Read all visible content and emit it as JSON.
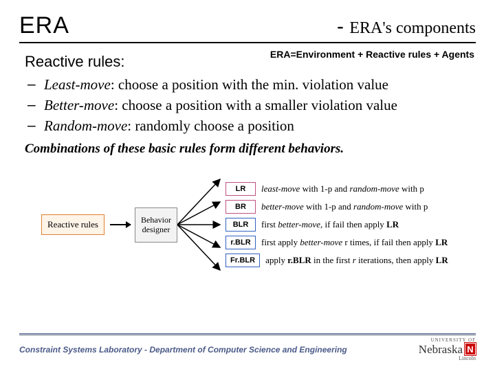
{
  "header": {
    "left": "ERA",
    "right_dash": "- ",
    "right_main": "ERA's components"
  },
  "acronym": "ERA=Environment + Reactive rules + Agents",
  "section_title": "Reactive rules:",
  "bullets": [
    {
      "term": "Least-move",
      "rest": ": choose a position with the min. violation value"
    },
    {
      "term": "Better-move",
      "rest": ": choose a position with a smaller violation value"
    },
    {
      "term": "Random-move",
      "rest": ": randomly choose a position"
    }
  ],
  "combo_line": "Combinations of these basic rules form different behaviors.",
  "diagram": {
    "reactive_rules_box": {
      "label": "Reactive rules",
      "border": "#e08030",
      "bg": "#fff4e8"
    },
    "behavior_designer": "Behavior designer",
    "rules": [
      {
        "code": "LR",
        "border": "#c05080",
        "desc_parts": [
          {
            "t": "least-move",
            "it": true
          },
          {
            "t": " with 1-p and "
          },
          {
            "t": "random-move",
            "it": true
          },
          {
            "t": " with p"
          }
        ]
      },
      {
        "code": "BR",
        "border": "#c05080",
        "desc_parts": [
          {
            "t": "better-move",
            "it": true
          },
          {
            "t": " with 1-p and "
          },
          {
            "t": "random-move",
            "it": true
          },
          {
            "t": " with p"
          }
        ]
      },
      {
        "code": "BLR",
        "border": "#3060c0",
        "desc_parts": [
          {
            "t": "first "
          },
          {
            "t": "better-move",
            "it": true
          },
          {
            "t": ", if fail then apply "
          },
          {
            "t": "LR",
            "bf": true
          }
        ]
      },
      {
        "code": "r.BLR",
        "border": "#3060c0",
        "desc_parts": [
          {
            "t": "first apply "
          },
          {
            "t": "better-move",
            "it": true
          },
          {
            "t": " r times, if fail then apply "
          },
          {
            "t": "LR",
            "bf": true
          }
        ]
      },
      {
        "code": "Fr.BLR",
        "border": "#3060c0",
        "desc_parts": [
          {
            "t": "apply "
          },
          {
            "t": "r.BLR",
            "bf": true
          },
          {
            "t": " in the first "
          },
          {
            "t": "r",
            "it": true
          },
          {
            "t": " iterations, then apply "
          },
          {
            "t": "LR",
            "bf": true
          }
        ]
      }
    ],
    "colors": {
      "arrow": "#000000"
    }
  },
  "footer": {
    "text": "Constraint Systems Laboratory - Department of Computer Science and Engineering",
    "logo_top": "UNIVERSITY OF",
    "logo_main": "Nebraska",
    "logo_sub": "Lincoln"
  }
}
